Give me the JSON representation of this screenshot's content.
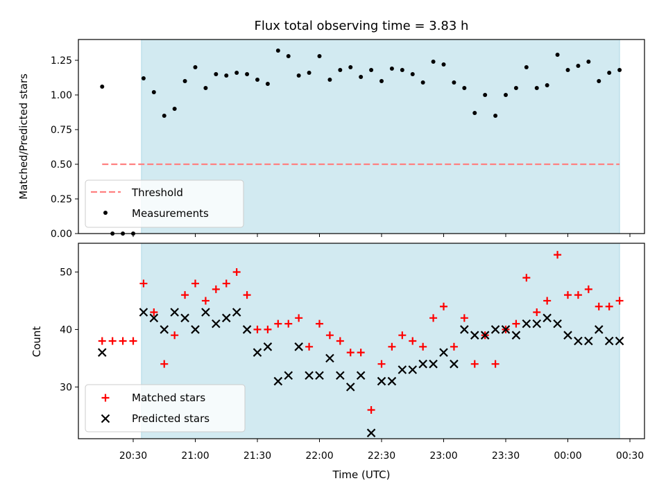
{
  "title": "Flux total observing time = 3.83 h",
  "colors": {
    "shade": "#add8e6",
    "threshold": "#ff8080",
    "measurement": "#000000",
    "matched": "#ff0000",
    "predicted": "#000000"
  },
  "chart_data": [
    {
      "type": "scatter",
      "panel": "top",
      "ylabel": "Matched/Predicted stars",
      "ylim": [
        0.0,
        1.4
      ],
      "yticks": [
        0.0,
        0.25,
        0.5,
        0.75,
        1.0,
        1.25
      ],
      "ytick_labels": [
        "0.00",
        "0.25",
        "0.50",
        "0.75",
        "1.00",
        "1.25"
      ],
      "shaded_span": {
        "start": "20:34",
        "end": "00:25"
      },
      "threshold": {
        "value": 0.5,
        "x_start": "20:15",
        "x_end": "00:25"
      },
      "legend": {
        "position": "bottom-left",
        "entries": [
          "Threshold",
          "Measurements"
        ]
      },
      "x": [
        "20:15",
        "20:20",
        "20:25",
        "20:30",
        "20:35",
        "20:40",
        "20:45",
        "20:50",
        "20:55",
        "21:00",
        "21:05",
        "21:10",
        "21:15",
        "21:20",
        "21:25",
        "21:30",
        "21:35",
        "21:40",
        "21:45",
        "21:50",
        "21:55",
        "22:00",
        "22:05",
        "22:10",
        "22:15",
        "22:20",
        "22:25",
        "22:30",
        "22:35",
        "22:40",
        "22:45",
        "22:50",
        "22:55",
        "23:00",
        "23:05",
        "23:10",
        "23:15",
        "23:20",
        "23:25",
        "23:30",
        "23:35",
        "23:40",
        "23:45",
        "23:50",
        "23:55",
        "00:00",
        "00:05",
        "00:10",
        "00:15",
        "00:20",
        "00:25"
      ],
      "series": [
        {
          "name": "Measurements",
          "values": [
            1.06,
            0.0,
            0.0,
            0.0,
            1.12,
            1.02,
            0.85,
            0.9,
            1.1,
            1.2,
            1.05,
            1.15,
            1.14,
            1.16,
            1.15,
            1.11,
            1.08,
            1.32,
            1.28,
            1.14,
            1.16,
            1.28,
            1.11,
            1.18,
            1.2,
            1.13,
            1.18,
            1.1,
            1.19,
            1.18,
            1.15,
            1.09,
            1.24,
            1.22,
            1.09,
            1.05,
            0.87,
            1.0,
            0.85,
            1.0,
            1.05,
            1.2,
            1.05,
            1.07,
            1.29,
            1.18,
            1.21,
            1.24,
            1.1,
            1.16,
            1.18
          ]
        }
      ]
    },
    {
      "type": "scatter",
      "panel": "bottom",
      "ylabel": "Count",
      "xlabel": "Time (UTC)",
      "ylim": [
        21,
        55
      ],
      "yticks": [
        30,
        40,
        50
      ],
      "xticks": [
        "20:30",
        "21:00",
        "21:30",
        "22:00",
        "22:30",
        "23:00",
        "23:30",
        "00:00",
        "00:30"
      ],
      "shaded_span": {
        "start": "20:34",
        "end": "00:25"
      },
      "legend": {
        "position": "bottom-left",
        "entries": [
          "Matched stars",
          "Predicted stars"
        ]
      },
      "x": [
        "20:15",
        "20:20",
        "20:25",
        "20:30",
        "20:35",
        "20:40",
        "20:45",
        "20:50",
        "20:55",
        "21:00",
        "21:05",
        "21:10",
        "21:15",
        "21:20",
        "21:25",
        "21:30",
        "21:35",
        "21:40",
        "21:45",
        "21:50",
        "21:55",
        "22:00",
        "22:05",
        "22:10",
        "22:15",
        "22:20",
        "22:25",
        "22:30",
        "22:35",
        "22:40",
        "22:45",
        "22:50",
        "22:55",
        "23:00",
        "23:05",
        "23:10",
        "23:15",
        "23:20",
        "23:25",
        "23:30",
        "23:35",
        "23:40",
        "23:45",
        "23:50",
        "23:55",
        "00:00",
        "00:05",
        "00:10",
        "00:15",
        "00:20",
        "00:25"
      ],
      "series": [
        {
          "name": "Matched stars",
          "values": [
            38,
            38,
            38,
            38,
            48,
            43,
            34,
            39,
            46,
            48,
            45,
            47,
            48,
            50,
            46,
            40,
            40,
            41,
            41,
            42,
            37,
            41,
            39,
            38,
            36,
            36,
            26,
            34,
            37,
            39,
            38,
            37,
            42,
            44,
            37,
            42,
            34,
            39,
            34,
            40,
            41,
            49,
            43,
            45,
            53,
            46,
            46,
            47,
            44,
            44,
            45
          ]
        },
        {
          "name": "Predicted stars",
          "values": [
            36,
            null,
            null,
            null,
            43,
            42,
            40,
            43,
            42,
            40,
            43,
            41,
            42,
            43,
            40,
            36,
            37,
            31,
            32,
            37,
            32,
            32,
            35,
            32,
            30,
            32,
            22,
            31,
            31,
            33,
            33,
            34,
            34,
            36,
            34,
            40,
            39,
            39,
            40,
            40,
            39,
            41,
            41,
            42,
            41,
            39,
            38,
            38,
            40,
            38,
            38
          ]
        }
      ]
    }
  ]
}
